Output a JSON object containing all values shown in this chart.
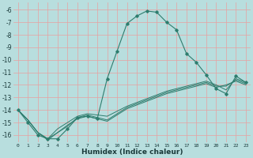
{
  "xlabel": "Humidex (Indice chaleur)",
  "bg_color": "#b8dede",
  "grid_color": "#e8a0a0",
  "line_color": "#2e7d6e",
  "xlim": [
    -0.5,
    23.5
  ],
  "ylim": [
    -16.6,
    -5.4
  ],
  "xtick_labels": [
    "0",
    "1",
    "2",
    "3",
    "4",
    "5",
    "6",
    "7",
    "8",
    "9",
    "10",
    "11",
    "12",
    "13",
    "14",
    "15",
    "16",
    "17",
    "18",
    "19",
    "20",
    "21",
    "22",
    "23"
  ],
  "xtick_vals": [
    0,
    1,
    2,
    3,
    4,
    5,
    6,
    7,
    8,
    9,
    10,
    11,
    12,
    13,
    14,
    15,
    16,
    17,
    18,
    19,
    20,
    21,
    22,
    23
  ],
  "ytick_vals": [
    -6,
    -7,
    -8,
    -9,
    -10,
    -11,
    -12,
    -13,
    -14,
    -15,
    -16
  ],
  "main_x": [
    0,
    1,
    2,
    3,
    4,
    5,
    6,
    7,
    8,
    9,
    10,
    11,
    12,
    13,
    14,
    15,
    16,
    17,
    18,
    19,
    20,
    21,
    22,
    23
  ],
  "main_y": [
    -14.0,
    -15.0,
    -16.0,
    -16.3,
    -16.3,
    -15.5,
    -14.6,
    -14.5,
    -14.7,
    -11.5,
    -9.3,
    -7.1,
    -6.5,
    -6.1,
    -6.2,
    -7.0,
    -7.6,
    -9.5,
    -10.2,
    -11.2,
    -12.3,
    -12.7,
    -11.3,
    -11.8
  ],
  "line_flat1_x": [
    0,
    1,
    2,
    3,
    4,
    5,
    6,
    7,
    8,
    9,
    10,
    11,
    12,
    13,
    14,
    15,
    16,
    17,
    18,
    19,
    20,
    21,
    22,
    23
  ],
  "line_flat1_y": [
    -14.0,
    -14.8,
    -15.8,
    -16.3,
    -15.5,
    -15.0,
    -14.5,
    -14.3,
    -14.4,
    -14.5,
    -14.1,
    -13.7,
    -13.4,
    -13.1,
    -12.8,
    -12.5,
    -12.3,
    -12.1,
    -11.9,
    -11.7,
    -12.0,
    -12.4,
    -11.5,
    -11.8
  ],
  "line_flat2_x": [
    0,
    1,
    2,
    3,
    4,
    5,
    6,
    7,
    8,
    9,
    10,
    11,
    12,
    13,
    14,
    15,
    16,
    17,
    18,
    19,
    20,
    21,
    22,
    23
  ],
  "line_flat2_y": [
    -14.0,
    -14.8,
    -15.8,
    -16.3,
    -15.8,
    -15.3,
    -14.6,
    -14.4,
    -14.6,
    -14.8,
    -14.3,
    -13.8,
    -13.5,
    -13.2,
    -12.9,
    -12.6,
    -12.4,
    -12.2,
    -12.0,
    -11.8,
    -12.1,
    -12.1,
    -11.6,
    -11.9
  ],
  "line_flat3_x": [
    0,
    1,
    2,
    3,
    4,
    5,
    6,
    7,
    8,
    9,
    10,
    11,
    12,
    13,
    14,
    15,
    16,
    17,
    18,
    19,
    20,
    21,
    22,
    23
  ],
  "line_flat3_y": [
    -14.0,
    -14.8,
    -15.8,
    -16.4,
    -15.8,
    -15.2,
    -14.7,
    -14.5,
    -14.7,
    -14.9,
    -14.4,
    -13.9,
    -13.6,
    -13.3,
    -13.0,
    -12.7,
    -12.5,
    -12.3,
    -12.1,
    -11.9,
    -12.2,
    -12.0,
    -11.7,
    -12.0
  ]
}
